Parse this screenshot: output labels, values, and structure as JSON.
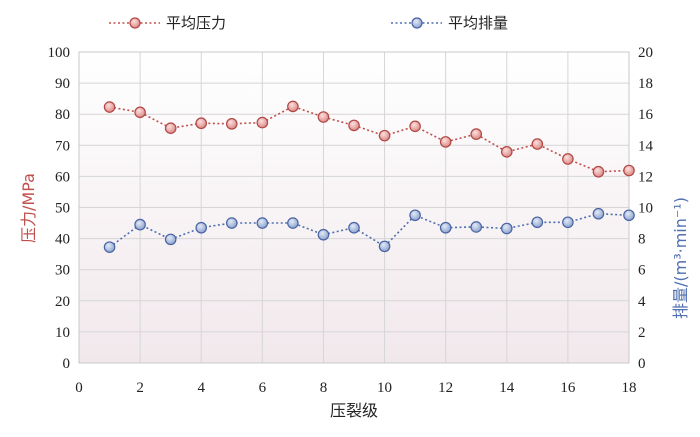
{
  "chart_data": {
    "type": "line",
    "xlabel": "压裂级",
    "ylabel_left": "压力/MPa",
    "ylabel_right": "排量/(m³·min⁻¹)",
    "xlim": [
      0,
      18
    ],
    "xticks": [
      "0",
      "2",
      "4",
      "6",
      "8",
      "10",
      "12",
      "14",
      "16",
      "18"
    ],
    "ylim_left": [
      0,
      100
    ],
    "yticks_left": [
      "0",
      "10",
      "20",
      "30",
      "40",
      "50",
      "60",
      "70",
      "80",
      "90",
      "100"
    ],
    "ylim_right": [
      0,
      20
    ],
    "yticks_right": [
      "0",
      "2",
      "4",
      "6",
      "8",
      "10",
      "12",
      "14",
      "16",
      "18",
      "20"
    ],
    "grid": true,
    "legend_position": "top",
    "x": [
      1,
      2,
      3,
      4,
      5,
      6,
      7,
      8,
      9,
      10,
      11,
      12,
      13,
      14,
      15,
      16,
      17,
      18
    ],
    "series": [
      {
        "name": "平均压力",
        "axis": "left",
        "color": "#c0504d",
        "values": [
          82.3,
          80.6,
          75.5,
          77.1,
          76.9,
          77.3,
          82.5,
          79.1,
          76.4,
          73.1,
          76.1,
          71.1,
          73.6,
          67.9,
          70.4,
          65.6,
          61.5,
          61.9
        ]
      },
      {
        "name": "平均排量",
        "axis": "right",
        "color": "#4f6fb0",
        "values": [
          7.45,
          8.9,
          7.95,
          8.7,
          9.0,
          9.0,
          9.0,
          8.25,
          8.7,
          7.5,
          9.5,
          8.7,
          8.75,
          8.65,
          9.05,
          9.05,
          9.6,
          9.5
        ]
      }
    ]
  }
}
